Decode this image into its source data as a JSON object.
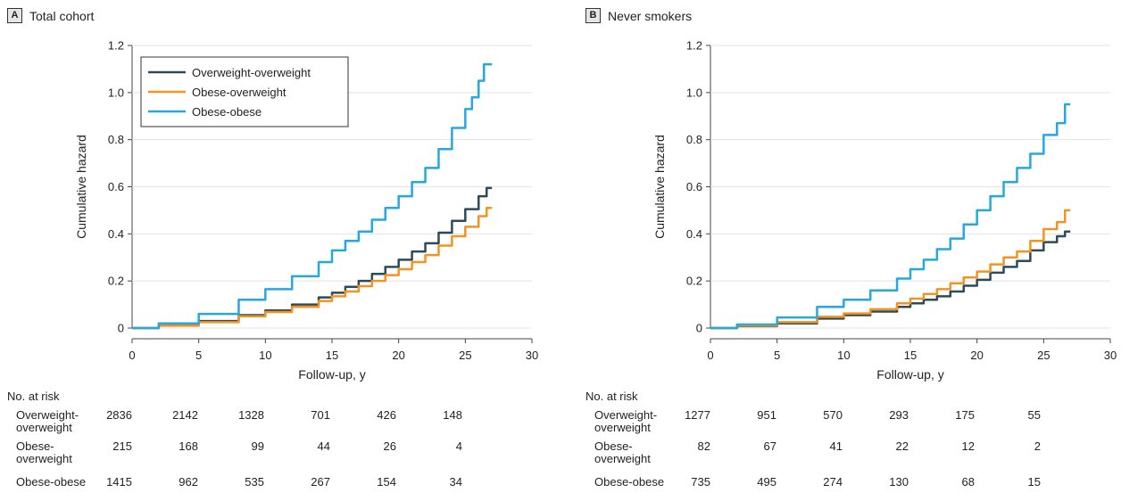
{
  "panels": [
    {
      "letter": "A",
      "title": "Total cohort",
      "risk_table": {
        "title": "No. at risk",
        "rows": [
          {
            "label": "Overweight-overweight",
            "values": [
              "2836",
              "2142",
              "1328",
              "701",
              "426",
              "148"
            ]
          },
          {
            "label": "Obese-overweight",
            "values": [
              "215",
              "168",
              "99",
              "44",
              "26",
              "4"
            ]
          },
          {
            "label": "Obese-obese",
            "values": [
              "1415",
              "962",
              "535",
              "267",
              "154",
              "34"
            ]
          }
        ]
      }
    },
    {
      "letter": "B",
      "title": "Never smokers",
      "risk_table": {
        "title": "No. at risk",
        "rows": [
          {
            "label": "Overweight-overweight",
            "values": [
              "1277",
              "951",
              "570",
              "293",
              "175",
              "55"
            ]
          },
          {
            "label": "Obese-overweight",
            "values": [
              "82",
              "67",
              "41",
              "22",
              "12",
              "2"
            ]
          },
          {
            "label": "Obese-obese",
            "values": [
              "735",
              "495",
              "274",
              "130",
              "68",
              "15"
            ]
          }
        ]
      }
    }
  ],
  "chart_data": [
    {
      "type": "line",
      "title": "Total cohort",
      "xlabel": "Follow-up, y",
      "ylabel": "Cumulative hazard",
      "xlim": [
        0,
        30
      ],
      "ylim": [
        0,
        1.2
      ],
      "xticks": [
        "0",
        "5",
        "10",
        "15",
        "20",
        "25",
        "30"
      ],
      "yticks": [
        "0",
        "0.2",
        "0.4",
        "0.6",
        "0.8",
        "1.0",
        "1.2"
      ],
      "legend_position": "top-left",
      "series": [
        {
          "name": "Overweight-overweight",
          "color": "#2c4a5a",
          "x": [
            0,
            2,
            5,
            8,
            10,
            12,
            14,
            15,
            16,
            17,
            18,
            19,
            20,
            21,
            22,
            23,
            24,
            25,
            26,
            26.6,
            27.0
          ],
          "y": [
            0,
            0.012,
            0.03,
            0.055,
            0.075,
            0.1,
            0.13,
            0.15,
            0.175,
            0.2,
            0.23,
            0.26,
            0.29,
            0.325,
            0.36,
            0.405,
            0.455,
            0.505,
            0.56,
            0.595,
            0.595
          ]
        },
        {
          "name": "Obese-overweight",
          "color": "#f39321",
          "x": [
            0,
            2,
            5,
            8,
            10,
            12,
            14,
            15,
            16,
            17,
            18,
            19,
            20,
            21,
            22,
            23,
            24,
            25,
            26,
            26.6,
            27.0
          ],
          "y": [
            0,
            0.01,
            0.025,
            0.05,
            0.068,
            0.09,
            0.115,
            0.135,
            0.155,
            0.178,
            0.2,
            0.225,
            0.25,
            0.28,
            0.31,
            0.35,
            0.39,
            0.43,
            0.475,
            0.51,
            0.51
          ]
        },
        {
          "name": "Obese-obese",
          "color": "#25a8e0",
          "x": [
            0,
            2,
            5,
            8,
            10,
            12,
            14,
            15,
            16,
            17,
            18,
            19,
            20,
            21,
            22,
            23,
            24,
            25,
            25.5,
            26,
            26.4,
            27.0
          ],
          "y": [
            0,
            0.02,
            0.06,
            0.12,
            0.165,
            0.22,
            0.28,
            0.33,
            0.37,
            0.41,
            0.46,
            0.51,
            0.56,
            0.62,
            0.68,
            0.76,
            0.85,
            0.93,
            0.98,
            1.05,
            1.12,
            1.12
          ]
        }
      ]
    },
    {
      "type": "line",
      "title": "Never smokers",
      "xlabel": "Follow-up, y",
      "ylabel": "Cumulative hazard",
      "xlim": [
        0,
        30
      ],
      "ylim": [
        0,
        1.2
      ],
      "xticks": [
        "0",
        "5",
        "10",
        "15",
        "20",
        "25",
        "30"
      ],
      "yticks": [
        "0",
        "0.2",
        "0.4",
        "0.6",
        "0.8",
        "1.0",
        "1.2"
      ],
      "series": [
        {
          "name": "Overweight-overweight",
          "color": "#2c4a5a",
          "x": [
            0,
            2,
            5,
            8,
            10,
            12,
            14,
            15,
            16,
            17,
            18,
            19,
            20,
            21,
            22,
            23,
            24,
            25,
            26,
            26.6,
            27.0
          ],
          "y": [
            0,
            0.008,
            0.02,
            0.04,
            0.055,
            0.07,
            0.09,
            0.105,
            0.12,
            0.135,
            0.155,
            0.18,
            0.205,
            0.235,
            0.26,
            0.285,
            0.33,
            0.365,
            0.39,
            0.41,
            0.41
          ]
        },
        {
          "name": "Obese-overweight",
          "color": "#f39321",
          "x": [
            0,
            2,
            5,
            8,
            10,
            12,
            14,
            15,
            16,
            17,
            18,
            19,
            20,
            21,
            22,
            23,
            24,
            25,
            26,
            26.6,
            27.0
          ],
          "y": [
            0,
            0.01,
            0.025,
            0.048,
            0.062,
            0.08,
            0.105,
            0.125,
            0.145,
            0.165,
            0.19,
            0.215,
            0.24,
            0.27,
            0.3,
            0.325,
            0.37,
            0.42,
            0.45,
            0.5,
            0.5
          ]
        },
        {
          "name": "Obese-obese",
          "color": "#25a8e0",
          "x": [
            0,
            2,
            5,
            8,
            10,
            12,
            14,
            15,
            16,
            17,
            18,
            19,
            20,
            21,
            22,
            23,
            24,
            25,
            26,
            26.6,
            27.0
          ],
          "y": [
            0,
            0.015,
            0.045,
            0.09,
            0.12,
            0.16,
            0.21,
            0.25,
            0.29,
            0.335,
            0.38,
            0.44,
            0.5,
            0.56,
            0.62,
            0.68,
            0.74,
            0.82,
            0.87,
            0.95,
            0.95
          ]
        }
      ]
    }
  ]
}
